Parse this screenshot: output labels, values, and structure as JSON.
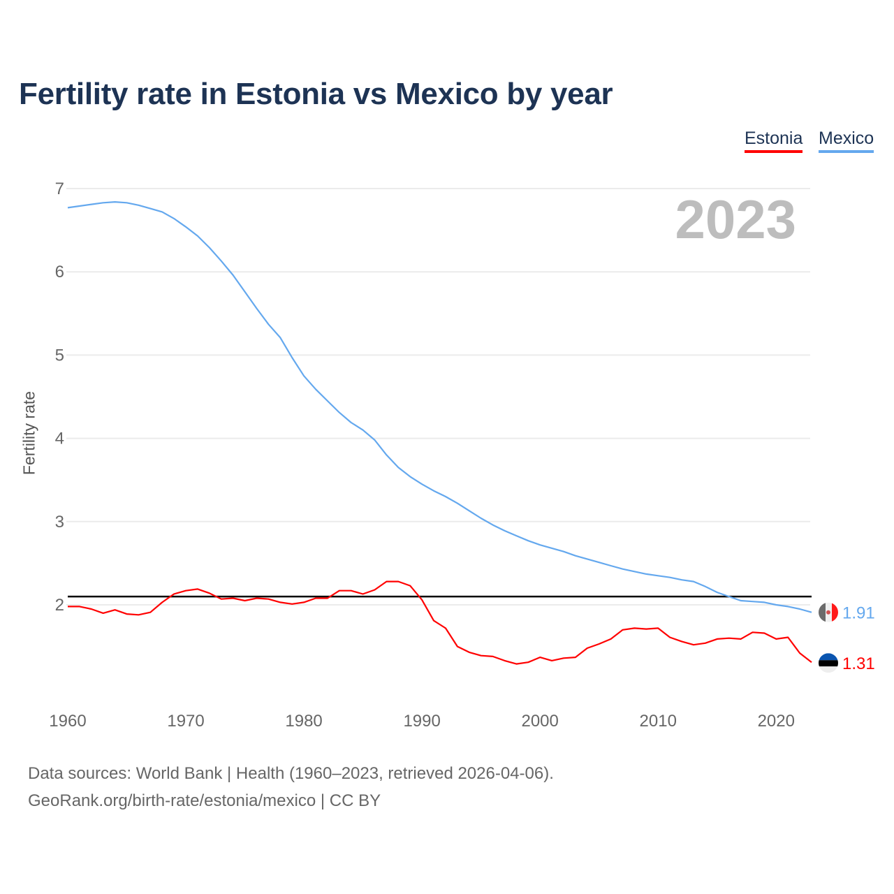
{
  "chart_data": {
    "type": "line",
    "title": "Fertility rate in Estonia vs Mexico by year",
    "xlabel": "",
    "ylabel": "Fertility rate",
    "xlim": [
      1960,
      2023
    ],
    "ylim": [
      1,
      7
    ],
    "x_ticks": [
      1960,
      1970,
      1980,
      1990,
      2000,
      2010,
      2020
    ],
    "y_ticks": [
      2,
      3,
      4,
      5,
      6,
      7
    ],
    "grid": true,
    "legend_position": "top-right",
    "year_label": "2023",
    "reference_line": 2.1,
    "years": [
      1960,
      1961,
      1962,
      1963,
      1964,
      1965,
      1966,
      1967,
      1968,
      1969,
      1970,
      1971,
      1972,
      1973,
      1974,
      1975,
      1976,
      1977,
      1978,
      1979,
      1980,
      1981,
      1982,
      1983,
      1984,
      1985,
      1986,
      1987,
      1988,
      1989,
      1990,
      1991,
      1992,
      1993,
      1994,
      1995,
      1996,
      1997,
      1998,
      1999,
      2000,
      2001,
      2002,
      2003,
      2004,
      2005,
      2006,
      2007,
      2008,
      2009,
      2010,
      2011,
      2012,
      2013,
      2014,
      2015,
      2016,
      2017,
      2018,
      2019,
      2020,
      2021,
      2022,
      2023
    ],
    "series": [
      {
        "name": "Estonia",
        "color": "#ff0000",
        "end_label": "1.31",
        "values": [
          1.98,
          1.98,
          1.95,
          1.9,
          1.94,
          1.89,
          1.88,
          1.91,
          2.03,
          2.13,
          2.17,
          2.19,
          2.14,
          2.07,
          2.08,
          2.05,
          2.08,
          2.07,
          2.03,
          2.01,
          2.03,
          2.08,
          2.08,
          2.17,
          2.17,
          2.13,
          2.18,
          2.28,
          2.28,
          2.23,
          2.06,
          1.81,
          1.72,
          1.5,
          1.43,
          1.39,
          1.38,
          1.33,
          1.29,
          1.31,
          1.37,
          1.33,
          1.36,
          1.37,
          1.48,
          1.53,
          1.59,
          1.7,
          1.72,
          1.71,
          1.72,
          1.61,
          1.56,
          1.52,
          1.54,
          1.59,
          1.6,
          1.59,
          1.67,
          1.66,
          1.59,
          1.61,
          1.42,
          1.31
        ]
      },
      {
        "name": "Mexico",
        "color": "#64a8ee",
        "end_label": "1.91",
        "values": [
          6.77,
          6.79,
          6.81,
          6.83,
          6.84,
          6.83,
          6.8,
          6.76,
          6.72,
          6.64,
          6.54,
          6.43,
          6.29,
          6.13,
          5.96,
          5.76,
          5.56,
          5.37,
          5.21,
          4.97,
          4.75,
          4.59,
          4.45,
          4.31,
          4.19,
          4.1,
          3.98,
          3.8,
          3.65,
          3.54,
          3.45,
          3.37,
          3.3,
          3.22,
          3.13,
          3.04,
          2.96,
          2.89,
          2.83,
          2.77,
          2.72,
          2.68,
          2.64,
          2.59,
          2.55,
          2.51,
          2.47,
          2.43,
          2.4,
          2.37,
          2.35,
          2.33,
          2.3,
          2.28,
          2.22,
          2.15,
          2.1,
          2.05,
          2.04,
          2.03,
          2.0,
          1.98,
          1.95,
          1.91
        ]
      }
    ]
  },
  "legend": {
    "estonia": "Estonia",
    "mexico": "Mexico"
  },
  "source": {
    "line1": "Data sources: World Bank | Health (1960–2023, retrieved 2026-04-06).",
    "line2": "GeoRank.org/birth-rate/estonia/mexico | CC BY"
  }
}
